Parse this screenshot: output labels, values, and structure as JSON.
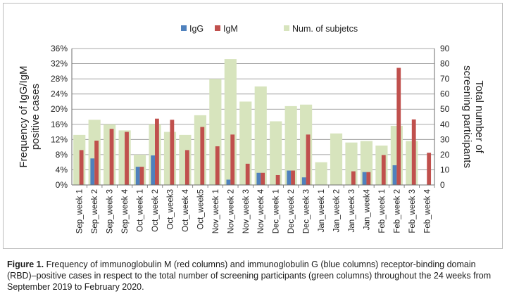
{
  "chart_data": {
    "type": "bar",
    "categories": [
      "Sep_week 1",
      "Sep_week 2",
      "Sep_week 3",
      "Sep_week 4",
      "Oct_week 1",
      "Oct_week 2",
      "Oct_week3",
      "Oct_week 4",
      "Oct_week5",
      "Nov_week 1",
      "Nov_week 2",
      "Nov_week 3",
      "Nov_week 4",
      "Dec_week 1",
      "Dec_week 2",
      "Dec_week 3",
      "Jan_week 1",
      "Jan_week 2",
      "Jan_week 3",
      "Jan_week4",
      "Feb_week 1",
      "Feb_week 2",
      "Feb_week 3",
      "Feb_week 4"
    ],
    "series": [
      {
        "name": "IgG",
        "axis": "left",
        "unit": "%",
        "color": "#4f81bd",
        "values": [
          0,
          7.0,
          0,
          0,
          4.8,
          7.8,
          0,
          0,
          0,
          0,
          1.4,
          0,
          3.2,
          0,
          3.8,
          2.0,
          0,
          0,
          0,
          3.4,
          0,
          5.2,
          0,
          0
        ]
      },
      {
        "name": "IgM",
        "axis": "left",
        "unit": "%",
        "color": "#c0504d",
        "values": [
          9.2,
          11.7,
          14.8,
          14.0,
          4.8,
          17.5,
          17.2,
          9.2,
          15.3,
          10.2,
          13.3,
          5.6,
          3.2,
          2.6,
          3.8,
          13.3,
          0,
          0,
          3.6,
          3.4,
          7.9,
          30.9,
          17.3,
          8.5
        ]
      },
      {
        "name": "Num. of subjetcs",
        "axis": "right",
        "unit": "count",
        "color": "#d7e4bd",
        "values": [
          33,
          43,
          40,
          36,
          20,
          40,
          35,
          33,
          46,
          70,
          83,
          55,
          65,
          42,
          52,
          53,
          15,
          34,
          28,
          29,
          26,
          39,
          29,
          0
        ]
      }
    ],
    "legend": [
      "IgG",
      "IgM",
      "Num. of subjetcs"
    ],
    "legend_position": "top",
    "ylabel": "Frequency of IgG/IgM positive cases",
    "ylabel_lines": [
      "Frequency of IgG/IgM",
      "positive cases"
    ],
    "ylim": [
      0,
      36
    ],
    "yticks": [
      "0%",
      "4%",
      "8%",
      "12%",
      "16%",
      "20%",
      "24%",
      "28%",
      "32%",
      "36%"
    ],
    "y2label": "Total number of screening participants",
    "y2label_lines": [
      "Total number of",
      "screening participants"
    ],
    "y2lim": [
      0,
      90
    ],
    "y2ticks": [
      "0",
      "10",
      "20",
      "30",
      "40",
      "50",
      "60",
      "70",
      "80",
      "90"
    ],
    "grid": true
  },
  "caption": {
    "label": "Figure 1.",
    "text": "Frequency of immunoglobulin M (red columns) and immunoglobulin G (blue columns) receptor-binding domain (RBD)–positive cases in respect to the total number of screening participants (green columns) throughout the 24 weeks from September 2019 to February 2020."
  }
}
